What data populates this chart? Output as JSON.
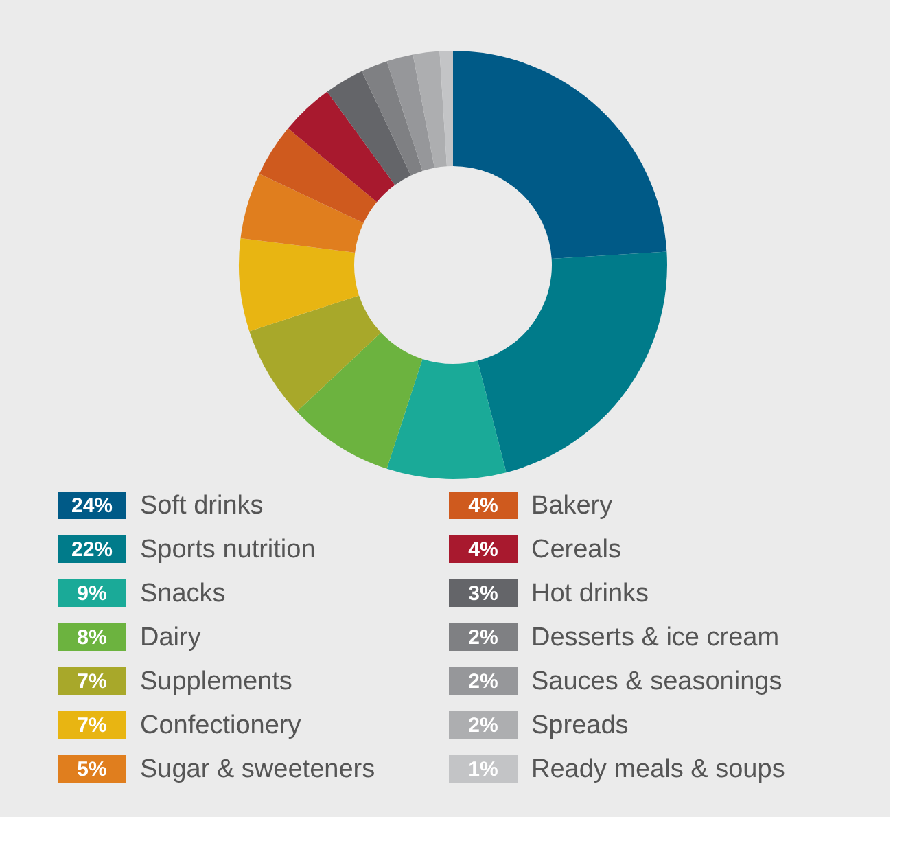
{
  "chart_data": {
    "type": "donut",
    "categories": [
      "Soft drinks",
      "Sports nutrition",
      "Snacks",
      "Dairy",
      "Supplements",
      "Confectionery",
      "Sugar & sweeteners",
      "Bakery",
      "Cereals",
      "Hot drinks",
      "Desserts & ice cream",
      "Sauces & seasonings",
      "Spreads",
      "Ready meals & soups"
    ],
    "values": [
      24,
      22,
      9,
      8,
      7,
      7,
      5,
      4,
      4,
      3,
      2,
      2,
      2,
      1
    ],
    "value_labels": [
      "24%",
      "22%",
      "9%",
      "8%",
      "7%",
      "7%",
      "5%",
      "4%",
      "4%",
      "3%",
      "2%",
      "2%",
      "2%",
      "1%"
    ],
    "colors": [
      "#005a87",
      "#007b8a",
      "#1aaa98",
      "#6cb33f",
      "#a8a82a",
      "#e8b512",
      "#e07e1e",
      "#cf5a1e",
      "#a8192e",
      "#646569",
      "#7f8083",
      "#96979a",
      "#adaeb0",
      "#c3c4c6"
    ],
    "legend": "bottom"
  }
}
